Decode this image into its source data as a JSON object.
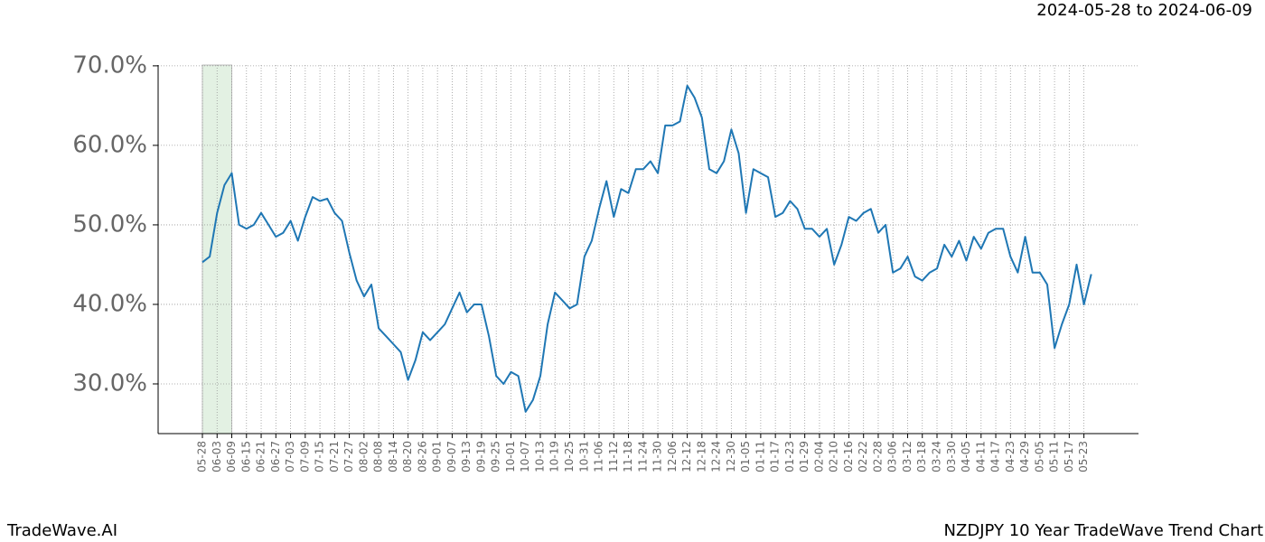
{
  "brand": "TradeWave.AI",
  "chart_data": {
    "type": "line",
    "title": "NZDJPY 10 Year TradeWave Trend Chart",
    "subtitle": "2024-05-28 to 2024-06-09",
    "categories": [
      "05-28",
      null,
      "06-03",
      null,
      "06-09",
      null,
      "06-15",
      null,
      "06-21",
      null,
      "06-27",
      null,
      "07-03",
      null,
      "07-09",
      null,
      "07-15",
      null,
      "07-21",
      null,
      "07-27",
      null,
      "08-02",
      null,
      "08-08",
      null,
      "08-14",
      null,
      "08-20",
      null,
      "08-26",
      null,
      "09-01",
      null,
      "09-07",
      null,
      "09-13",
      null,
      "09-19",
      null,
      "09-25",
      null,
      "10-01",
      null,
      "10-07",
      null,
      "10-13",
      null,
      "10-19",
      null,
      "10-25",
      null,
      "10-31",
      null,
      "11-06",
      null,
      "11-12",
      null,
      "11-18",
      null,
      "11-24",
      null,
      "11-30",
      null,
      "12-06",
      null,
      "12-12",
      null,
      "12-18",
      null,
      "12-24",
      null,
      "12-30",
      null,
      "01-05",
      null,
      "01-11",
      null,
      "01-17",
      null,
      "01-23",
      null,
      "01-29",
      null,
      "02-04",
      null,
      "02-10",
      null,
      "02-16",
      null,
      "02-22",
      null,
      "02-28",
      null,
      "03-06",
      null,
      "03-12",
      null,
      "03-18",
      null,
      "03-24",
      null,
      "03-30",
      null,
      "04-05",
      null,
      "04-11",
      null,
      "04-17",
      null,
      "04-23",
      null,
      "04-29",
      null,
      "05-05",
      null,
      "05-11",
      null,
      "05-17",
      null,
      "05-23",
      null
    ],
    "values": [
      45.3,
      46,
      51.5,
      55,
      56.5,
      50,
      49.5,
      50,
      51.5,
      50,
      48.5,
      49,
      50.5,
      48,
      51,
      53.5,
      53,
      53.3,
      51.5,
      50.5,
      46.5,
      43,
      41,
      42.5,
      37,
      36,
      35,
      34,
      30.5,
      33,
      36.5,
      35.5,
      36.5,
      37.5,
      39.5,
      41.5,
      39,
      40,
      40,
      36,
      31,
      30,
      31.5,
      31,
      26.5,
      28,
      31,
      37.5,
      41.5,
      40.5,
      39.5,
      40,
      46,
      48,
      52,
      55.5,
      51,
      54.5,
      54,
      57,
      57,
      58,
      56.5,
      62.5,
      62.5,
      63,
      67.5,
      66,
      63.5,
      57,
      56.5,
      58,
      62,
      59,
      51.5,
      57,
      56.5,
      56,
      51,
      51.5,
      53,
      52,
      49.5,
      49.5,
      48.5,
      49.5,
      45,
      47.5,
      51,
      50.5,
      51.5,
      52,
      49,
      50,
      44,
      44.5,
      46,
      43.5,
      43,
      44,
      44.5,
      47.5,
      46,
      48,
      45.5,
      48.5,
      47,
      49,
      49.5,
      49.5,
      46,
      44,
      48.5,
      44,
      44,
      42.5,
      34.5,
      37.5,
      40,
      45,
      40,
      43.8
    ],
    "color": "#1f77b4",
    "ylim": [
      23.75,
      70.1
    ],
    "yticks": [
      {
        "value": 30,
        "label": "30.0%"
      },
      {
        "value": 40,
        "label": "40.0%"
      },
      {
        "value": 50,
        "label": "50.0%"
      },
      {
        "value": 60,
        "label": "60.0%"
      },
      {
        "value": 70,
        "label": "70.0%"
      }
    ],
    "grid": true
  }
}
